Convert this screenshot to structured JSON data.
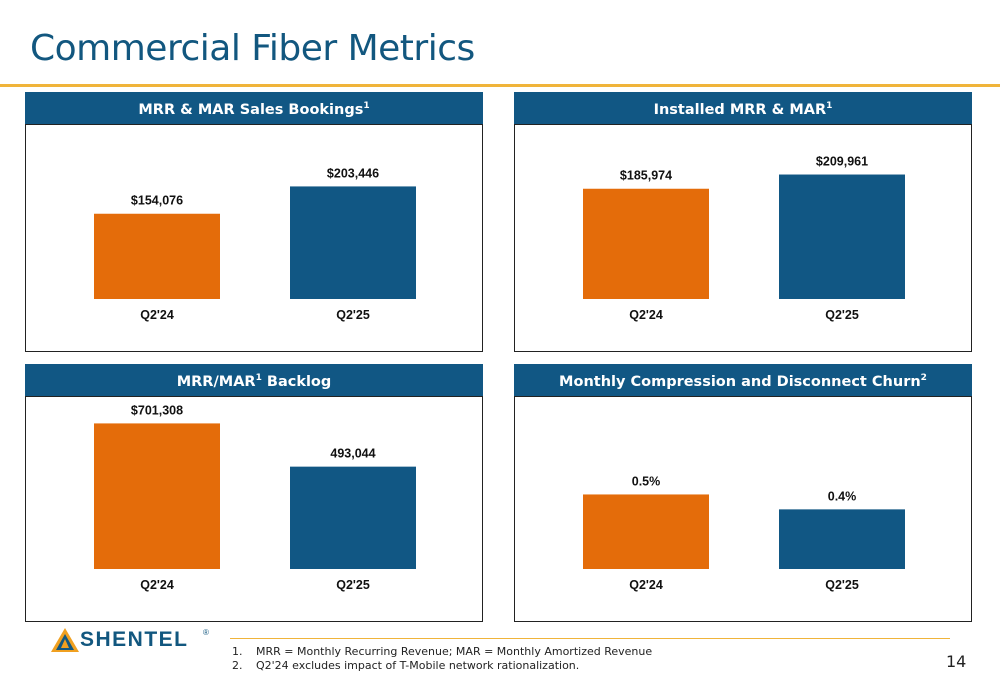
{
  "title": "Commercial Fiber Metrics",
  "colors": {
    "q224": "#e46c0a",
    "q225": "#115784",
    "accent": "#f0b43a"
  },
  "panels": [
    {
      "header": "MRR & MAR Sales Bookings",
      "header_sup": "1",
      "chart_data": {
        "type": "bar",
        "categories": [
          "Q2'24",
          "Q2'25"
        ],
        "values": [
          154076,
          203446
        ],
        "value_labels": [
          "$154,076",
          "$203,446"
        ],
        "ylim": [
          0,
          300000
        ]
      }
    },
    {
      "header": "Installed MRR & MAR",
      "header_sup": "1",
      "chart_data": {
        "type": "bar",
        "categories": [
          "Q2'24",
          "Q2'25"
        ],
        "values": [
          185974,
          209961
        ],
        "value_labels": [
          "$185,974",
          "$209,961"
        ],
        "ylim": [
          0,
          280000
        ]
      }
    },
    {
      "header": "MRR/MAR",
      "header_sup": "1",
      "header_suffix": " Backlog",
      "chart_data": {
        "type": "bar",
        "categories": [
          "Q2'24",
          "Q2'25"
        ],
        "values": [
          701308,
          493044
        ],
        "value_labels": [
          "$701,308",
          "493,044"
        ],
        "ylim": [
          0,
          790000
        ]
      }
    },
    {
      "header": "Monthly Compression and Disconnect Churn",
      "header_sup": "2",
      "chart_data": {
        "type": "bar",
        "categories": [
          "Q2'24",
          "Q2'25"
        ],
        "values": [
          0.5,
          0.4
        ],
        "value_labels": [
          "0.5%",
          "0.4%"
        ],
        "ylim": [
          0,
          1.1
        ]
      }
    }
  ],
  "logo_text": "SHENTEL",
  "logo_mark": "®",
  "footnotes": [
    {
      "num": "1.",
      "text": "MRR = Monthly Recurring Revenue; MAR = Monthly Amortized Revenue"
    },
    {
      "num": "2.",
      "text": "Q2'24 excludes impact of T-Mobile network rationalization."
    }
  ],
  "page_number": "14"
}
